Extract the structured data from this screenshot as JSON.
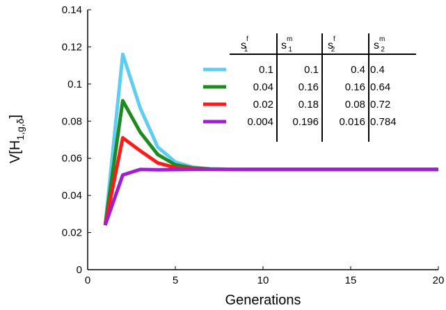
{
  "chart_data": {
    "type": "line",
    "xlabel": "Generations",
    "ylabel": {
      "main": "V[H",
      "sub": "1,g,δ",
      "close": "]"
    },
    "xlim": [
      0,
      20
    ],
    "ylim": [
      0,
      0.14
    ],
    "xticks": [
      0,
      5,
      10,
      15,
      20
    ],
    "yticks": [
      0,
      0.02,
      0.04,
      0.06,
      0.08,
      0.1,
      0.12,
      0.14
    ],
    "ytick_labels": [
      "0",
      "0.02",
      "0.04",
      "0.06",
      "0.08",
      "0.1",
      "0.12",
      "0.14"
    ],
    "grid": false,
    "legend_table": {
      "headers": [
        {
          "base": "s",
          "sup": "f",
          "sub": "1"
        },
        {
          "base": "s",
          "sup": "m",
          "sub": "1"
        },
        {
          "base": "s",
          "sup": "f",
          "sub": "2"
        },
        {
          "base": "s",
          "sup": "m",
          "sub": "2"
        }
      ],
      "rows": [
        [
          "0.1",
          "0.1",
          "0.4",
          "0.4"
        ],
        [
          "0.04",
          "0.16",
          "0.16",
          "0.64"
        ],
        [
          "0.02",
          "0.18",
          "0.08",
          "0.72"
        ],
        [
          "0.004",
          "0.196",
          "0.016",
          "0.784"
        ]
      ]
    },
    "series": [
      {
        "color": "#5fcdf0",
        "x": [
          1,
          2,
          3,
          4,
          5,
          6,
          7,
          8,
          9,
          10,
          11,
          12,
          13,
          14,
          15,
          16,
          17,
          18,
          19,
          20
        ],
        "y": [
          0.024,
          0.116,
          0.087,
          0.066,
          0.058,
          0.0552,
          0.0543,
          0.0541,
          0.054,
          0.054,
          0.054,
          0.054,
          0.054,
          0.054,
          0.054,
          0.054,
          0.054,
          0.054,
          0.054,
          0.054
        ]
      },
      {
        "color": "#1f8a1f",
        "x": [
          1,
          2,
          3,
          4,
          5,
          6,
          7,
          8,
          9,
          10,
          11,
          12,
          13,
          14,
          15,
          16,
          17,
          18,
          19,
          20
        ],
        "y": [
          0.024,
          0.091,
          0.074,
          0.062,
          0.0565,
          0.0548,
          0.0542,
          0.0541,
          0.054,
          0.054,
          0.054,
          0.054,
          0.054,
          0.054,
          0.054,
          0.054,
          0.054,
          0.054,
          0.054,
          0.054
        ]
      },
      {
        "color": "#ff1a1a",
        "x": [
          1,
          2,
          3,
          4,
          5,
          6,
          7,
          8,
          9,
          10,
          11,
          12,
          13,
          14,
          15,
          16,
          17,
          18,
          19,
          20
        ],
        "y": [
          0.024,
          0.071,
          0.064,
          0.0575,
          0.055,
          0.0543,
          0.0541,
          0.054,
          0.054,
          0.054,
          0.054,
          0.054,
          0.054,
          0.054,
          0.054,
          0.054,
          0.054,
          0.054,
          0.054,
          0.054
        ]
      },
      {
        "color": "#a020d0",
        "x": [
          1,
          2,
          3,
          4,
          5,
          6,
          7,
          8,
          9,
          10,
          11,
          12,
          13,
          14,
          15,
          16,
          17,
          18,
          19,
          20
        ],
        "y": [
          0.024,
          0.051,
          0.054,
          0.0538,
          0.0539,
          0.054,
          0.054,
          0.054,
          0.054,
          0.054,
          0.054,
          0.054,
          0.054,
          0.054,
          0.054,
          0.054,
          0.054,
          0.054,
          0.054,
          0.054
        ]
      }
    ]
  }
}
